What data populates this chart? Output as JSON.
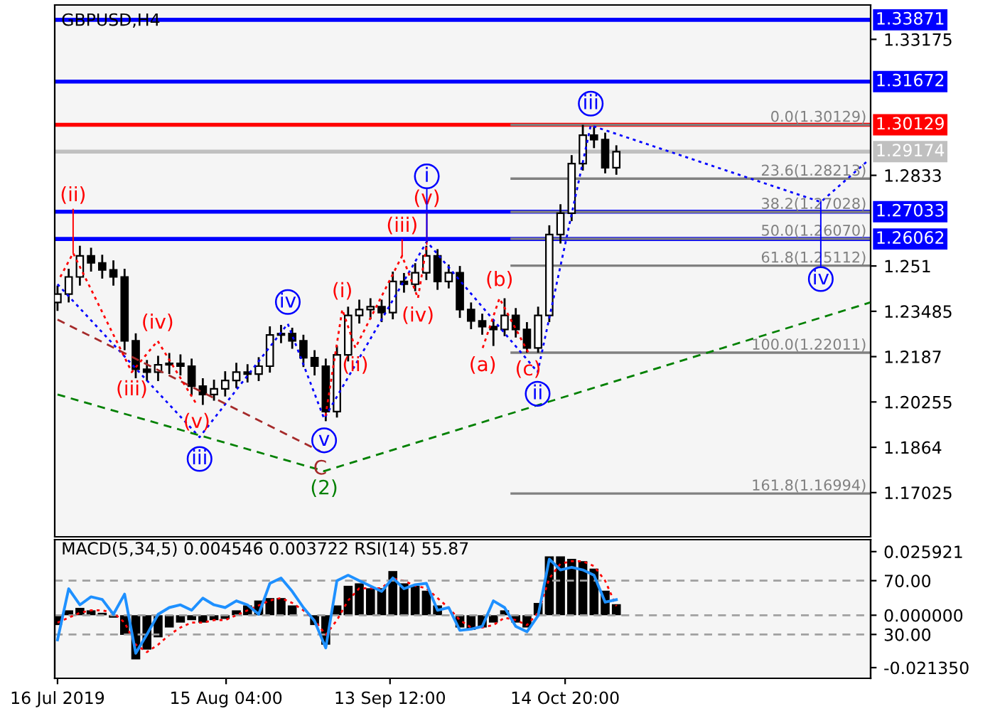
{
  "chart_data": [
    {
      "type": "candlestick",
      "title": "GBPUSD,H4",
      "x": [
        "2019-07-16",
        "2019-07-18",
        "2019-07-20",
        "2019-07-22",
        "2019-07-24",
        "2019-07-26",
        "2019-07-28",
        "2019-07-30",
        "2019-08-01",
        "2019-08-03",
        "2019-08-05",
        "2019-08-07",
        "2019-08-09",
        "2019-08-11",
        "2019-08-13",
        "2019-08-15",
        "2019-08-17",
        "2019-08-19",
        "2019-08-21",
        "2019-08-23",
        "2019-08-25",
        "2019-08-27",
        "2019-08-29",
        "2019-08-31",
        "2019-09-02",
        "2019-09-04",
        "2019-09-06",
        "2019-09-08",
        "2019-09-10",
        "2019-09-12",
        "2019-09-14",
        "2019-09-16",
        "2019-09-18",
        "2019-09-20",
        "2019-09-22",
        "2019-09-24",
        "2019-09-26",
        "2019-09-28",
        "2019-09-30",
        "2019-10-02",
        "2019-10-04",
        "2019-10-06",
        "2019-10-08",
        "2019-10-10",
        "2019-10-12",
        "2019-10-14",
        "2019-10-16",
        "2019-10-18",
        "2019-10-20",
        "2019-10-22",
        "2019-10-24"
      ],
      "ohlc": [
        [
          1.238,
          1.244,
          1.235,
          1.241
        ],
        [
          1.241,
          1.25,
          1.238,
          1.2471
        ],
        [
          1.2471,
          1.2582,
          1.244,
          1.2546
        ],
        [
          1.2546,
          1.2575,
          1.249,
          1.2521
        ],
        [
          1.2521,
          1.255,
          1.2465,
          1.2496
        ],
        [
          1.2496,
          1.253,
          1.244,
          1.2471
        ],
        [
          1.2471,
          1.25,
          1.221,
          1.2243
        ],
        [
          1.2243,
          1.227,
          1.211,
          1.2142
        ],
        [
          1.2142,
          1.2175,
          1.21,
          1.2132
        ],
        [
          1.2132,
          1.219,
          1.21,
          1.2158
        ],
        [
          1.2158,
          1.22,
          1.2125,
          1.2163
        ],
        [
          1.2163,
          1.2195,
          1.212,
          1.2153
        ],
        [
          1.2153,
          1.218,
          1.205,
          1.2082
        ],
        [
          1.2082,
          1.211,
          1.2015,
          1.2052
        ],
        [
          1.2052,
          1.2105,
          1.203,
          1.2072
        ],
        [
          1.2072,
          1.2135,
          1.2045,
          1.2102
        ],
        [
          1.2102,
          1.2165,
          1.2075,
          1.2132
        ],
        [
          1.2132,
          1.216,
          1.2095,
          1.2125
        ],
        [
          1.2125,
          1.2185,
          1.21,
          1.2153
        ],
        [
          1.2153,
          1.2295,
          1.213,
          1.2264
        ],
        [
          1.2264,
          1.23,
          1.2235,
          1.2269
        ],
        [
          1.2269,
          1.229,
          1.2215,
          1.2243
        ],
        [
          1.2243,
          1.2265,
          1.215,
          1.2183
        ],
        [
          1.2183,
          1.221,
          1.212,
          1.2153
        ],
        [
          1.2153,
          1.218,
          1.1957,
          1.1991
        ],
        [
          1.1991,
          1.2225,
          1.197,
          1.2193
        ],
        [
          1.2193,
          1.2365,
          1.217,
          1.2334
        ],
        [
          1.2334,
          1.239,
          1.2305,
          1.2355
        ],
        [
          1.2355,
          1.2395,
          1.232,
          1.2365
        ],
        [
          1.2365,
          1.239,
          1.231,
          1.2344
        ],
        [
          1.2344,
          1.249,
          1.232,
          1.2455
        ],
        [
          1.2455,
          1.2485,
          1.2415,
          1.2445
        ],
        [
          1.2445,
          1.252,
          1.242,
          1.2486
        ],
        [
          1.2486,
          1.2582,
          1.246,
          1.2546
        ],
        [
          1.2546,
          1.257,
          1.2425,
          1.2455
        ],
        [
          1.2455,
          1.2515,
          1.243,
          1.2486
        ],
        [
          1.2486,
          1.251,
          1.2325,
          1.2355
        ],
        [
          1.2355,
          1.238,
          1.2285,
          1.2314
        ],
        [
          1.2314,
          1.234,
          1.2265,
          1.2294
        ],
        [
          1.2294,
          1.232,
          1.2225,
          1.2284
        ],
        [
          1.2284,
          1.2395,
          1.226,
          1.2334
        ],
        [
          1.2334,
          1.236,
          1.2255,
          1.2284
        ],
        [
          1.2284,
          1.231,
          1.2201,
          1.2218
        ],
        [
          1.2218,
          1.2365,
          1.2201,
          1.2334
        ],
        [
          1.2334,
          1.2655,
          1.231,
          1.2622
        ],
        [
          1.2622,
          1.273,
          1.259,
          1.2698
        ],
        [
          1.2698,
          1.2905,
          1.267,
          1.2875
        ],
        [
          1.2875,
          1.3013,
          1.285,
          1.2976
        ],
        [
          1.2976,
          1.3005,
          1.293,
          1.296
        ],
        [
          1.296,
          1.2985,
          1.284,
          1.286
        ],
        [
          1.286,
          1.294,
          1.2835,
          1.2917
        ]
      ],
      "color": "#000000",
      "series": [
        {
          "type": "line",
          "color": "#0000ff",
          "line_style": "dotted",
          "x": [
            "2019-07-16T00:00",
            "2019-08-10T10:00",
            "2019-08-26T05:00",
            "2019-09-01T17:00",
            "2019-09-20T02:00",
            "2019-10-09T22:00",
            "2019-10-19T10:00",
            "2019-11-29T14:00",
            "2019-12-07T17:00"
          ],
          "values": [
            1.2445,
            1.19,
            1.2304,
            1.1966,
            1.2597,
            1.2132,
            1.3011,
            1.2738,
            1.288
          ]
        },
        {
          "type": "line",
          "color": "#008000",
          "line_style": "dashed",
          "x": [
            "2019-07-16T00:00",
            "2019-09-01T17:00",
            "2019-12-08T10:00"
          ],
          "values": [
            1.2052,
            1.1779,
            1.238
          ]
        },
        {
          "type": "line",
          "color": "#a52a2a",
          "line_style": "dashed",
          "x": [
            "2019-07-16T00:00",
            "2019-09-01T00:00"
          ],
          "values": [
            1.2319,
            1.185
          ]
        },
        {
          "type": "line",
          "color": "#ff0000",
          "line_style": "dotted",
          "x": [
            "2019-07-16T12:00",
            "2019-07-18T19:00",
            "2019-07-29T07:00",
            "2019-08-02T22:00",
            "2019-08-09T22:00"
          ],
          "values": [
            1.2471,
            1.2556,
            1.2132,
            1.2243,
            1.2016
          ]
        },
        {
          "type": "line",
          "color": "#ff0000",
          "line_style": "dotted",
          "x": [
            "2019-09-01T23:00",
            "2019-09-04T23:00",
            "2019-09-07T07:00",
            "2019-09-15T16:00",
            "2019-09-18T12:00",
            "2019-09-20T02:00"
          ],
          "values": [
            1.1976,
            1.2355,
            1.2218,
            1.2546,
            1.2395,
            1.2587
          ]
        },
        {
          "type": "line",
          "color": "#ff0000",
          "line_style": "dotted",
          "x": [
            "2019-09-30T02:00",
            "2019-10-03T02:00",
            "2019-10-08T05:00"
          ],
          "values": [
            1.2218,
            1.2395,
            1.2203
          ]
        }
      ],
      "xlim": [
        "2019-07-15T12:00",
        "2019-12-08T12:00"
      ],
      "ylim": [
        1.1545,
        1.344
      ],
      "yticks": [
        1.17025,
        1.1864,
        1.20255,
        1.2187,
        1.23485,
        1.251,
        1.2833,
        1.33175
      ],
      "tick_labels": "y",
      "ref_lines": [
        {
          "axis": "y",
          "value": 1.33871,
          "label": "1.33871",
          "color": "#0000ff"
        },
        {
          "axis": "y",
          "value": 1.31672,
          "label": "1.31672",
          "color": "#0000ff"
        },
        {
          "axis": "y",
          "value": 1.30129,
          "label": "1.30129",
          "color": "#ff0000"
        },
        {
          "axis": "y",
          "value": 1.29174,
          "label": "1.29174",
          "color": "#c0c0c0"
        },
        {
          "axis": "y",
          "value": 1.27033,
          "label": "1.27033",
          "color": "#0000ff"
        },
        {
          "axis": "y",
          "value": 1.26062,
          "label": "1.26062",
          "color": "#0000ff"
        },
        {
          "axis": "y",
          "value": 1.30129,
          "label": "0.0(1.30129)",
          "color": "#808080",
          "line_style": "solid"
        },
        {
          "axis": "y",
          "value": 1.28213,
          "label": "23.6(1.28213)",
          "color": "#808080",
          "line_style": "solid"
        },
        {
          "axis": "y",
          "value": 1.27028,
          "label": "38.2(1.27028)",
          "color": "#808080",
          "line_style": "solid"
        },
        {
          "axis": "y",
          "value": 1.2607,
          "label": "50.0(1.26070)",
          "color": "#808080",
          "line_style": "solid"
        },
        {
          "axis": "y",
          "value": 1.25112,
          "label": "61.8(1.25112)",
          "color": "#808080",
          "line_style": "solid"
        },
        {
          "axis": "y",
          "value": 1.22011,
          "label": "100.0(1.22011)",
          "color": "#808080",
          "line_style": "solid"
        },
        {
          "axis": "y",
          "value": 1.16994,
          "label": "161.8(1.16994)",
          "color": "#808080",
          "line_style": "solid"
        }
      ],
      "annotations": [
        {
          "text": "(ii)",
          "x": "2019-07-18T19:00",
          "y": 1.2556
        },
        {
          "text": "(iv)",
          "x": "2019-08-02T22:00",
          "y": 1.2243
        },
        {
          "text": "(iii)",
          "x": "2019-07-29T07:00",
          "y": 1.2132
        },
        {
          "text": "(v)",
          "x": "2019-08-09T22:00",
          "y": 1.2016
        },
        {
          "text": "iii",
          "x": "2019-08-10T10:00",
          "y": 1.19
        },
        {
          "text": "iv",
          "x": "2019-08-26T05:00",
          "y": 1.2304
        },
        {
          "text": "v",
          "x": "2019-09-01T17:00",
          "y": 1.1966
        },
        {
          "text": "C",
          "x": "2019-09-01T00:00",
          "y": 1.185
        },
        {
          "text": "(2)",
          "x": "2019-09-01T17:00",
          "y": 1.1779
        },
        {
          "text": "(i)",
          "x": "2019-09-04T23:00",
          "y": 1.2355
        },
        {
          "text": "(ii)",
          "x": "2019-09-07T07:00",
          "y": 1.2218
        },
        {
          "text": "(iii)",
          "x": "2019-09-15T16:00",
          "y": 1.2546
        },
        {
          "text": "(v)",
          "x": "2019-09-20T02:00",
          "y": 1.2587
        },
        {
          "text": "(iv)",
          "x": "2019-09-18T12:00",
          "y": 1.2395
        },
        {
          "text": "i",
          "x": "2019-09-20T02:00",
          "y": 1.2597
        },
        {
          "text": "(a)",
          "x": "2019-09-30T02:00",
          "y": 1.2218
        },
        {
          "text": "(b)",
          "x": "2019-10-03T02:00",
          "y": 1.2395
        },
        {
          "text": "(c)",
          "x": "2019-10-08T05:00",
          "y": 1.2203
        },
        {
          "text": "ii",
          "x": "2019-10-09T22:00",
          "y": 1.2132
        },
        {
          "text": "iii",
          "x": "2019-10-19T10:00",
          "y": 1.3011
        },
        {
          "text": "iv",
          "x": "2019-11-29T14:00",
          "y": 1.2738
        }
      ]
    },
    {
      "type": "bar",
      "title": "MACD(5,34,5) 0.004546 0.003722 RSI(14) 55.87",
      "x": [
        "2019-07-16",
        "2019-07-18",
        "2019-07-20",
        "2019-07-22",
        "2019-07-24",
        "2019-07-26",
        "2019-07-28",
        "2019-07-30",
        "2019-08-01",
        "2019-08-03",
        "2019-08-05",
        "2019-08-07",
        "2019-08-09",
        "2019-08-11",
        "2019-08-13",
        "2019-08-15",
        "2019-08-17",
        "2019-08-19",
        "2019-08-21",
        "2019-08-23",
        "2019-08-25",
        "2019-08-27",
        "2019-08-29",
        "2019-08-31",
        "2019-09-02",
        "2019-09-04",
        "2019-09-06",
        "2019-09-08",
        "2019-09-10",
        "2019-09-12",
        "2019-09-14",
        "2019-09-16",
        "2019-09-18",
        "2019-09-20",
        "2019-09-22",
        "2019-09-24",
        "2019-09-26",
        "2019-09-28",
        "2019-09-30",
        "2019-10-02",
        "2019-10-04",
        "2019-10-06",
        "2019-10-08",
        "2019-10-10",
        "2019-10-12",
        "2019-10-14",
        "2019-10-16",
        "2019-10-18",
        "2019-10-20",
        "2019-10-22",
        "2019-10-24"
      ],
      "series": [
        {
          "type": "bar",
          "color": "#000000",
          "values": [
            -0.004,
            0.002,
            0.003,
            0.002,
            0.001,
            -0.001,
            -0.008,
            -0.018,
            -0.014,
            -0.009,
            -0.005,
            -0.003,
            -0.002,
            -0.003,
            -0.002,
            -0.0015,
            0.002,
            0.004,
            0.006,
            0.007,
            0.007,
            0.004,
            0.0,
            -0.004,
            -0.012,
            0.004,
            0.012,
            0.013,
            0.011,
            0.011,
            0.018,
            0.013,
            0.012,
            0.01,
            0.004,
            0.0,
            -0.005,
            -0.006,
            -0.005,
            -0.003,
            0.002,
            -0.003,
            -0.005,
            0.005,
            0.024,
            0.024,
            0.023,
            0.022,
            0.019,
            0.01,
            0.0045
          ]
        },
        {
          "type": "line",
          "color": "#ff0000",
          "line_style": "dotted",
          "values": [
            -0.003,
            -0.001,
            0.001,
            0.002,
            0.002,
            0.001,
            -0.003,
            -0.012,
            -0.015,
            -0.012,
            -0.008,
            -0.005,
            -0.003,
            -0.003,
            -0.002,
            -0.002,
            0.0,
            0.002,
            0.004,
            0.006,
            0.007,
            0.005,
            0.002,
            -0.002,
            -0.008,
            -0.002,
            0.006,
            0.011,
            0.011,
            0.011,
            0.015,
            0.014,
            0.012,
            0.011,
            0.007,
            0.003,
            -0.002,
            -0.005,
            -0.005,
            -0.004,
            -0.001,
            -0.002,
            -0.004,
            0.001,
            0.015,
            0.021,
            0.022,
            0.022,
            0.02,
            0.014,
            0.0037
          ]
        },
        {
          "type": "line",
          "color": "#1e90ff",
          "line_style": "solid",
          "axis": "y2",
          "values": [
            26,
            64,
            52,
            58,
            56,
            45,
            60,
            16,
            30,
            45,
            50,
            52,
            48,
            57,
            52,
            50,
            55,
            52,
            45,
            68,
            72,
            62,
            50,
            40,
            20,
            70,
            74,
            70,
            66,
            62,
            72,
            64,
            67,
            68,
            48,
            50,
            33,
            34,
            36,
            55,
            50,
            36,
            32,
            44,
            86,
            78,
            80,
            78,
            74,
            54,
            55.87
          ]
        }
      ],
      "xlim": [
        "2019-07-15T12:00",
        "2019-12-08T12:00"
      ],
      "xticks": [
        {
          "value": "2019-07-16T00:00",
          "label": "16 Jul 2019"
        },
        {
          "value": "2019-08-15T04:00",
          "label": "15 Aug 04:00"
        },
        {
          "value": "2019-09-13T12:00",
          "label": "13 Sep 12:00"
        },
        {
          "value": "2019-10-14T20:00",
          "label": "14 Oct 20:00"
        }
      ],
      "ylim": [
        -0.0257,
        0.0308
      ],
      "yticks": [
        {
          "value": 0.025921,
          "label": "0.025921"
        },
        {
          "value": 0,
          "label": "0.000000"
        },
        {
          "value": -0.02135,
          "label": "-0.021350"
        }
      ],
      "y2lim": [
        -2.6,
        100.5
      ],
      "y2ticks": [
        {
          "value": 70,
          "label": "70.00"
        },
        {
          "value": 30,
          "label": "30.00"
        }
      ],
      "grid": "y"
    }
  ]
}
